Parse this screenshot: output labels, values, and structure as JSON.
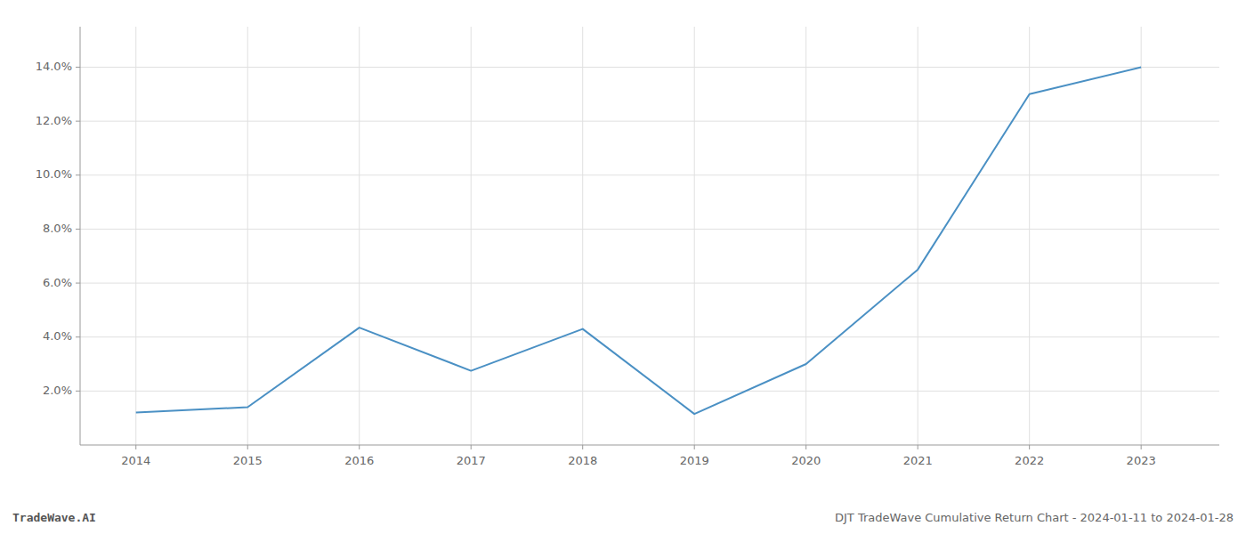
{
  "chart_data": {
    "type": "line",
    "title": "DJT TradeWave Cumulative Return Chart - 2024-01-11 to 2024-01-28",
    "annotations": [
      "TradeWave.AI"
    ],
    "x": [
      2014,
      2015,
      2016,
      2017,
      2018,
      2019,
      2020,
      2021,
      2022,
      2023
    ],
    "values": [
      1.2,
      1.4,
      4.35,
      2.75,
      4.3,
      1.15,
      3.0,
      6.5,
      13.0,
      14.0
    ],
    "color": "#4a90c4",
    "xlim": [
      2013.5,
      2023.7
    ],
    "xticks": [
      2014,
      2015,
      2016,
      2017,
      2018,
      2019,
      2020,
      2021,
      2022,
      2023
    ],
    "ylim": [
      0.0,
      15.5
    ],
    "yticks": [
      {
        "value": 2.0,
        "label": "2.0%"
      },
      {
        "value": 4.0,
        "label": "4.0%"
      },
      {
        "value": 6.0,
        "label": "6.0%"
      },
      {
        "value": 8.0,
        "label": "8.0%"
      },
      {
        "value": 10.0,
        "label": "10.0%"
      },
      {
        "value": 12.0,
        "label": "12.0%"
      },
      {
        "value": 14.0,
        "label": "14.0%"
      }
    ],
    "grid": true
  }
}
